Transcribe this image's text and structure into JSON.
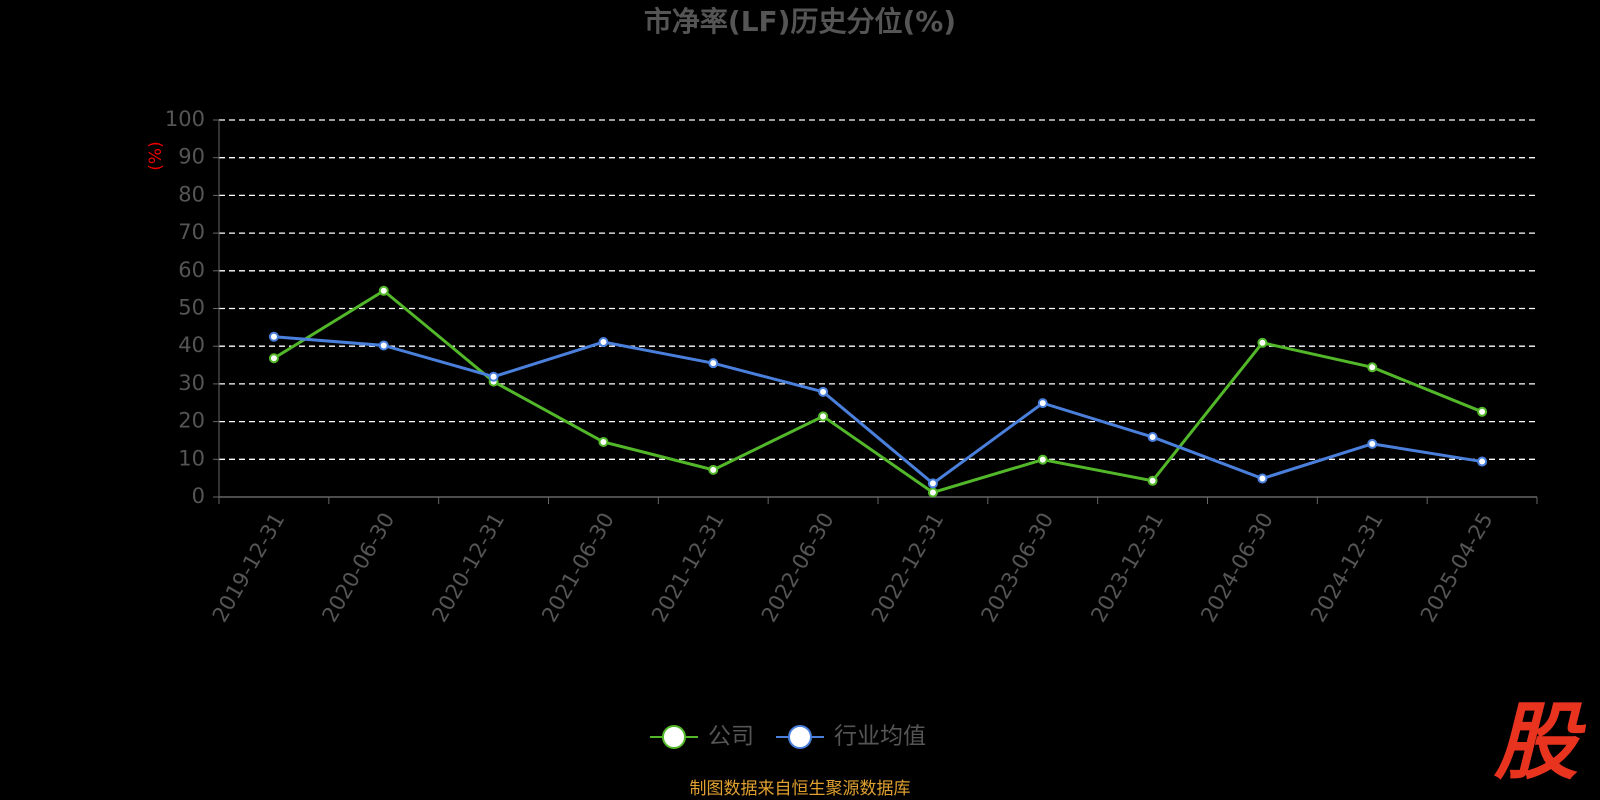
{
  "chart_data": {
    "type": "line",
    "title": "市净率(LF)历史分位(%)",
    "y_label": "(%)",
    "categories": [
      "2019-12-31",
      "2020-06-30",
      "2020-12-31",
      "2021-06-30",
      "2021-12-31",
      "2022-06-30",
      "2022-12-31",
      "2023-06-30",
      "2023-12-31",
      "2024-06-30",
      "2024-12-31",
      "2025-04-25"
    ],
    "series": [
      {
        "name": "公司",
        "color": "#52b82a",
        "values": [
          36.8,
          54.7,
          30.6,
          14.6,
          7.2,
          21.4,
          1.2,
          9.9,
          4.3,
          40.9,
          34.4,
          22.6
        ]
      },
      {
        "name": "行业均值",
        "color": "#4a80dc",
        "values": [
          42.5,
          40.2,
          31.9,
          41.1,
          35.5,
          27.9,
          3.6,
          24.9,
          15.9,
          4.9,
          14.1,
          9.4
        ]
      }
    ],
    "ylim": [
      0,
      100
    ],
    "yticks": [
      0,
      10,
      20,
      30,
      40,
      50,
      60,
      70,
      80,
      90,
      100
    ],
    "grid": true,
    "legend": "bottom",
    "source": "制图数据来自恒生聚源数据库",
    "logo": "股"
  }
}
